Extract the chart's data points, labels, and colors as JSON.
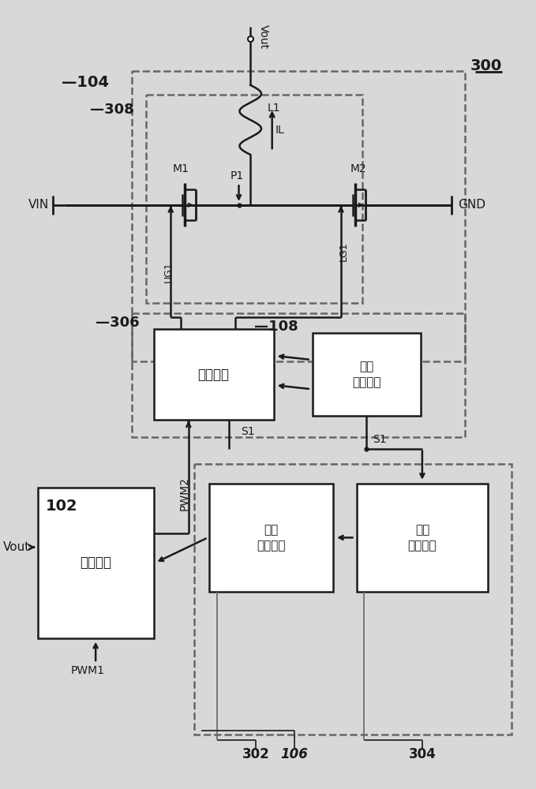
{
  "bg_color": "#d8d8d8",
  "line_color": "#1a1a1a",
  "box_fill": "#ffffff",
  "dash_color": "#666666",
  "label_300": "300",
  "label_104": "104",
  "label_308": "308",
  "label_306": "306",
  "label_108": "108",
  "label_102": "102",
  "label_302": "302",
  "label_106": "106",
  "label_304": "304",
  "text_drive": "驱动单元",
  "text_current_line1": "电流",
  "text_current_line2": "检测单元",
  "text_adjust": "调整模块",
  "text_shrink_line1": "缩减",
  "text_shrink_line2": "控制单元",
  "text_freq_line1": "频率",
  "text_freq_line2": "检测单元",
  "text_M1": "M1",
  "text_M2": "M2",
  "text_L1": "L1",
  "text_P1": "P1",
  "text_IL": "IL",
  "text_UG1": "UG1",
  "text_LG1": "LG1",
  "text_S1": "S1",
  "text_PWM1": "PWM1",
  "text_PWM2": "PWM2",
  "text_VIN": "VIN",
  "text_GND": "GND",
  "text_Vout_top": "Vout",
  "text_Vout_bot": "Vout",
  "fig_width": 6.79,
  "fig_height": 10.0,
  "dpi": 100
}
